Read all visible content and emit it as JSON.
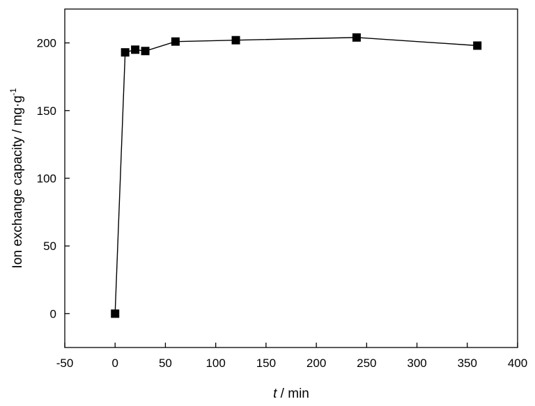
{
  "chart_data": {
    "type": "line",
    "xlabel": {
      "italic": "t",
      "rest": " / min"
    },
    "ylabel": {
      "main": "Ion exchange capacity  / mg·g",
      "superscript": "-1"
    },
    "xlim": [
      -50,
      400
    ],
    "ylim": [
      -25,
      225
    ],
    "xticks": [
      -50,
      0,
      50,
      100,
      150,
      200,
      250,
      300,
      350,
      400
    ],
    "yticks": [
      0,
      50,
      100,
      150,
      200
    ],
    "grid": false,
    "marker": "square",
    "colors": {
      "series": "#000000",
      "axis": "#000000"
    },
    "series": [
      {
        "x": [
          0,
          10,
          20,
          30,
          60,
          120,
          240,
          360
        ],
        "y": [
          0,
          193,
          195,
          194,
          201,
          202,
          204,
          198
        ]
      }
    ]
  }
}
